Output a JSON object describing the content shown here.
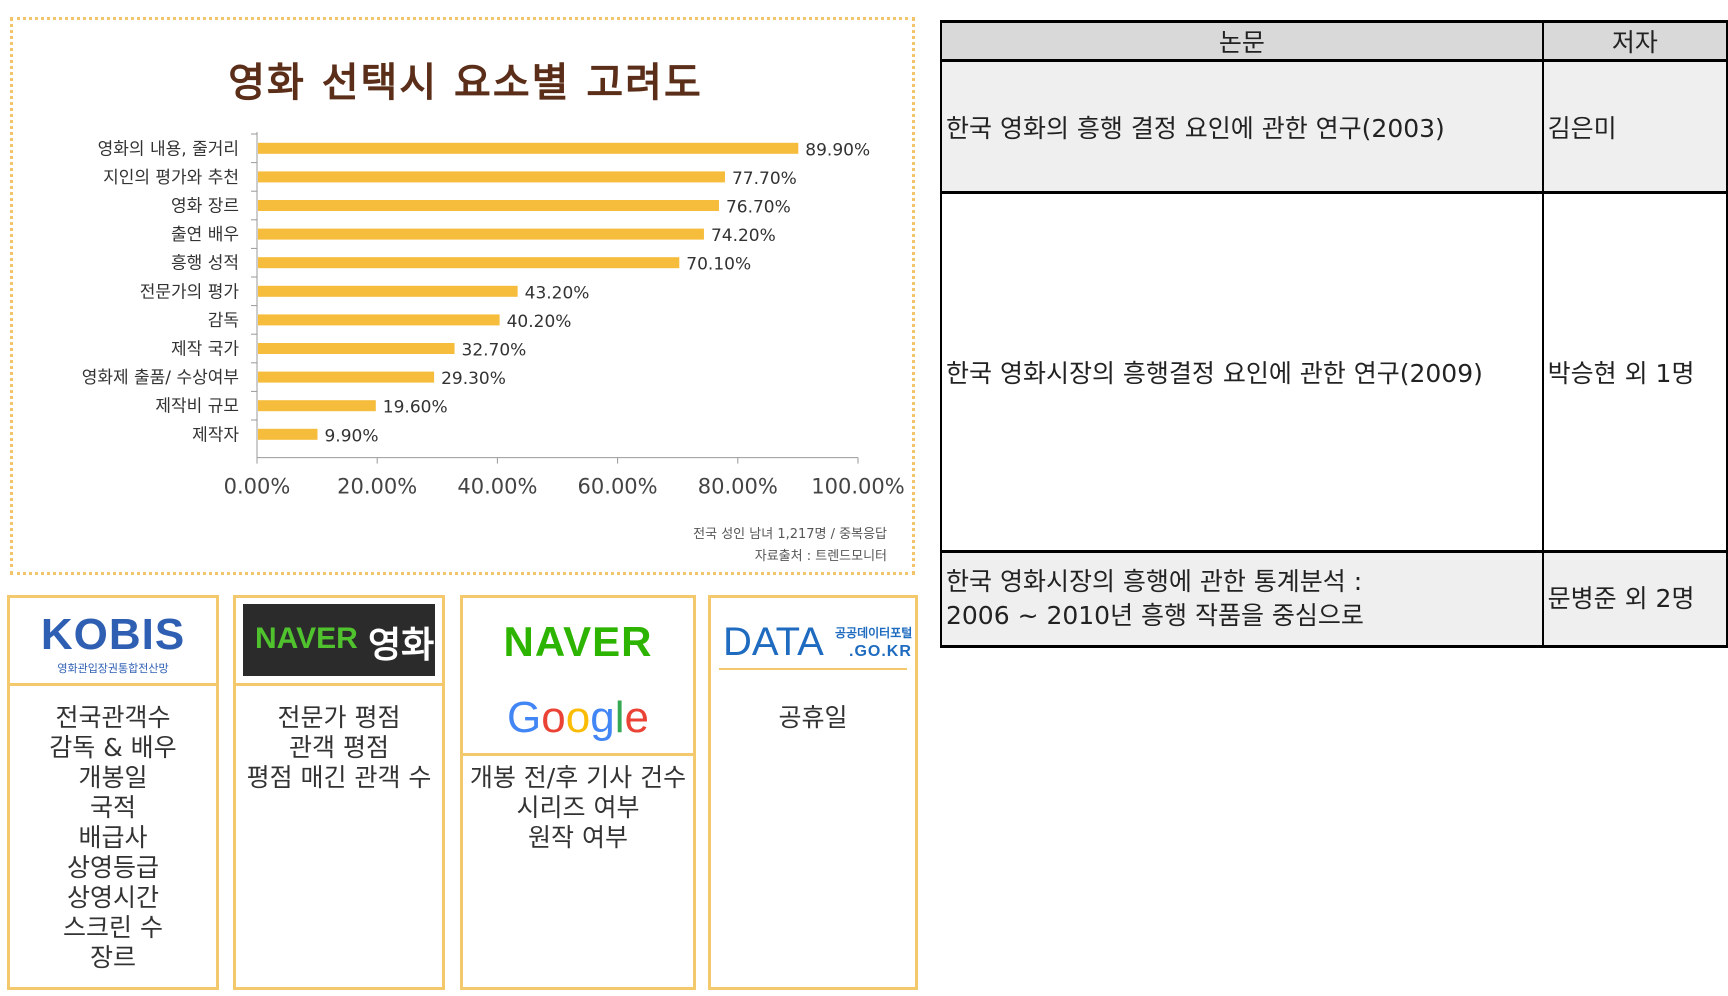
{
  "chart": {
    "title": "영화 선택시 요소별 고려도",
    "note_line1": "전국 성인 남녀 1,217명 / 중복응답",
    "note_line2": "자료출처 : 트렌드모니터",
    "bar_color": "#f6bc3c"
  },
  "chart_data": {
    "type": "bar",
    "orientation": "horizontal",
    "title": "영화 선택시 요소별 고려도",
    "categories": [
      "영화의 내용, 줄거리",
      "지인의 평가와 추천",
      "영화 장르",
      "출연 배우",
      "흥행 성적",
      "전문가의 평가",
      "감독",
      "제작 국가",
      "영화제 출품/ 수상여부",
      "제작비 규모",
      "제작자"
    ],
    "values": [
      89.9,
      77.7,
      76.7,
      74.2,
      70.1,
      43.2,
      40.2,
      32.7,
      29.3,
      19.6,
      9.9
    ],
    "value_labels": [
      "89.90%",
      "77.70%",
      "76.70%",
      "74.20%",
      "70.10%",
      "43.20%",
      "40.20%",
      "32.70%",
      "29.30%",
      "19.60%",
      "9.90%"
    ],
    "xlim": [
      0,
      100
    ],
    "xticks": [
      "0.00%",
      "20.00%",
      "40.00%",
      "60.00%",
      "80.00%",
      "100.00%"
    ],
    "grid": false
  },
  "cards": {
    "kobis": {
      "logo": "KOBIS",
      "logo_sub": "영화관입장권통합전산망",
      "items": [
        "전국관객수",
        "감독 & 배우",
        "개봉일",
        "국적",
        "배급사",
        "상영등급",
        "상영시간",
        "스크린 수",
        "장르"
      ]
    },
    "naver_movie": {
      "logo_naver": "NAVER",
      "logo_movie": "영화",
      "items": [
        "전문가 평점",
        "관객 평점",
        "평점 매긴 관객 수"
      ]
    },
    "naver_google": {
      "logo_naver": "NAVER",
      "logo_google": [
        "G",
        "o",
        "o",
        "g",
        "l",
        "e"
      ],
      "google_colors": [
        "#4285f4",
        "#ea4335",
        "#fbbc05",
        "#4285f4",
        "#34a853",
        "#ea4335"
      ],
      "items": [
        "개봉 전/후 기사 건수",
        "시리즈 여부",
        "원작 여부"
      ]
    },
    "data_portal": {
      "logo": "DATA",
      "logo_sub": "공공데이터포털",
      "logo_go": ".GO.KR",
      "items": [
        "공휴일"
      ]
    }
  },
  "table": {
    "headers": [
      "논문",
      "저자"
    ],
    "rows": [
      {
        "paper": "한국 영화의 흥행 결정 요인에 관한 연구(2003)",
        "author": "김은미"
      },
      {
        "paper": "한국 영화시장의 흥행결정 요인에 관한 연구(2009)",
        "author": "박승현 외 1명"
      },
      {
        "paper_line1": "한국 영화시장의 흥행에 관한 통계분석 :",
        "paper_line2": "2006 ~ 2010년 흥행 작품을 중심으로",
        "author": "문병준 외 2명"
      }
    ]
  }
}
